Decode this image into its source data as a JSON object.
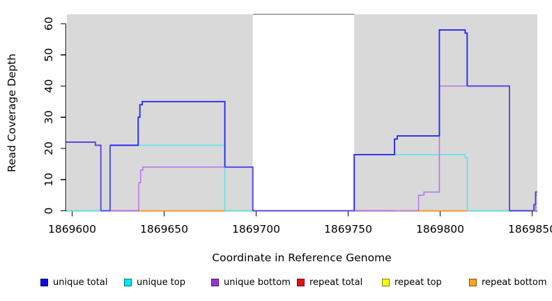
{
  "chart_data": {
    "type": "line",
    "subtype": "step-coverage-plot",
    "xlabel": "Coordinate in Reference Genome",
    "ylabel": "Read Coverage Depth",
    "x_ticks": [
      {
        "value": 1869600,
        "label": "1869600"
      },
      {
        "value": 1869650,
        "label": "1869650"
      },
      {
        "value": 1869700,
        "label": "1869700"
      },
      {
        "value": 1869750,
        "label": "1869750"
      },
      {
        "value": 1869800,
        "label": "1869800"
      },
      {
        "value": 1869850,
        "label": "1869850"
      }
    ],
    "y_ticks": [
      {
        "value": 0,
        "label": "0"
      },
      {
        "value": 10,
        "label": "10"
      },
      {
        "value": 20,
        "label": "20"
      },
      {
        "value": 30,
        "label": "30"
      },
      {
        "value": 40,
        "label": "40"
      },
      {
        "value": 50,
        "label": "50"
      },
      {
        "value": 60,
        "label": "60"
      }
    ],
    "x_range": [
      1869596.8,
      1869852.8
    ],
    "y_range": [
      0,
      63
    ],
    "shaded_regions": {
      "color": "#d9d9d9",
      "top_value": 63,
      "regions": [
        {
          "x1": 1869597.2,
          "x2": 1869698.2
        },
        {
          "x1": 1869753.3,
          "x2": 1869852.8
        }
      ]
    },
    "gap_top_line": {
      "x1": 1869698.2,
      "x2": 1869753.3,
      "y": 63,
      "color": "#8c8c8c"
    },
    "series": [
      {
        "name": "unique total",
        "base_color": "#2a2af2",
        "segments": [
          {
            "color": "#5847e0",
            "points": [
              [
                1869596.8,
                22
              ],
              [
                1869612.6,
                22
              ],
              [
                1869612.6,
                21
              ],
              [
                1869615.6,
                21
              ],
              [
                1869615.6,
                0
              ]
            ]
          },
          {
            "color": "#4a4cea",
            "points": [
              [
                1869615.6,
                0
              ],
              [
                1869620.6,
                0
              ],
              [
                1869620.6,
                21
              ]
            ]
          },
          {
            "color": "#2a2af2",
            "points": [
              [
                1869620.6,
                21
              ],
              [
                1869635.9,
                21
              ],
              [
                1869635.9,
                30
              ],
              [
                1869636.8,
                30
              ],
              [
                1869636.8,
                34
              ],
              [
                1869638.1,
                34
              ],
              [
                1869638.1,
                35
              ],
              [
                1869683,
                35
              ],
              [
                1869683,
                14
              ]
            ]
          },
          {
            "color": "#4d3fe6",
            "points": [
              [
                1869683,
                14
              ],
              [
                1869698.2,
                14
              ],
              [
                1869698.2,
                0
              ]
            ]
          },
          {
            "color": "#5847e0",
            "points": [
              [
                1869698.2,
                0
              ],
              [
                1869753.3,
                0
              ]
            ]
          },
          {
            "color": "#2a2af2",
            "points": [
              [
                1869753.3,
                0
              ],
              [
                1869753.3,
                18
              ],
              [
                1869775.2,
                18
              ],
              [
                1869775.2,
                23
              ],
              [
                1869776.7,
                23
              ],
              [
                1869776.7,
                24
              ],
              [
                1869799.6,
                24
              ],
              [
                1869799.6,
                58
              ],
              [
                1869813.6,
                58
              ],
              [
                1869813.6,
                57
              ],
              [
                1869814.7,
                57
              ],
              [
                1869814.7,
                40
              ]
            ]
          },
          {
            "color": "#5847e0",
            "points": [
              [
                1869814.7,
                40
              ],
              [
                1869837.7,
                40
              ],
              [
                1869837.7,
                0
              ]
            ]
          },
          {
            "color": "#4540d8",
            "points": [
              [
                1869837.7,
                0
              ],
              [
                1869851,
                0
              ]
            ]
          },
          {
            "color": "#4d3fe6",
            "points": [
              [
                1869851,
                0
              ],
              [
                1869851,
                2
              ],
              [
                1869851.9,
                2
              ],
              [
                1869851.9,
                6
              ],
              [
                1869852.8,
                6
              ]
            ]
          }
        ]
      },
      {
        "name": "unique top",
        "base_color": "#55e4ee",
        "segments": [
          {
            "color": "#55e4ee",
            "points": [
              [
                1869596.8,
                0
              ],
              [
                1869620.6,
                0
              ],
              [
                1869620.6,
                21
              ],
              [
                1869683,
                21
              ],
              [
                1869683,
                0
              ],
              [
                1869753.3,
                0
              ],
              [
                1869753.3,
                18
              ],
              [
                1869813.6,
                18
              ],
              [
                1869813.6,
                17
              ],
              [
                1869814.8,
                17
              ],
              [
                1869814.8,
                0
              ],
              [
                1869851,
                0
              ],
              [
                1869851,
                1
              ],
              [
                1869852.8,
                1
              ]
            ]
          }
        ]
      },
      {
        "name": "unique bottom",
        "base_color": "#b472e9",
        "segments": [
          {
            "color": "#b472e9",
            "points": [
              [
                1869596.8,
                22
              ],
              [
                1869612.6,
                22
              ],
              [
                1869612.6,
                21
              ],
              [
                1869615.6,
                21
              ],
              [
                1869615.6,
                0
              ],
              [
                1869636.2,
                0
              ],
              [
                1869636.2,
                9
              ],
              [
                1869637.2,
                9
              ],
              [
                1869637.2,
                13
              ],
              [
                1869638.4,
                13
              ],
              [
                1869638.4,
                14
              ],
              [
                1869698.2,
                14
              ],
              [
                1869698.2,
                0
              ],
              [
                1869788.3,
                0
              ],
              [
                1869788.3,
                5
              ],
              [
                1869791.2,
                5
              ],
              [
                1869791.2,
                6
              ],
              [
                1869799.6,
                6
              ],
              [
                1869799.6,
                40
              ],
              [
                1869837.7,
                40
              ],
              [
                1869837.7,
                0
              ],
              [
                1869851.9,
                0
              ],
              [
                1869851.9,
                5
              ],
              [
                1869852.8,
                5
              ]
            ]
          }
        ]
      }
    ],
    "baseline_segments": [
      {
        "x1": 1869596.8,
        "x2": 1869615.6,
        "color": "#90ce90"
      },
      {
        "x1": 1869620.6,
        "x2": 1869636.2,
        "color": "#c84b72"
      },
      {
        "x1": 1869636.2,
        "x2": 1869683.0,
        "color": "#ff9c1e"
      },
      {
        "x1": 1869683.0,
        "x2": 1869698.2,
        "color": "#90ce90"
      },
      {
        "x1": 1869753.3,
        "x2": 1869775.5,
        "color": "#c84b72"
      },
      {
        "x1": 1869775.5,
        "x2": 1869814.8,
        "color": "#ff9c1e"
      },
      {
        "x1": 1869814.8,
        "x2": 1869837.7,
        "color": "#90ce90"
      }
    ],
    "axis_color": "#000000",
    "legend_position": "bottom-horizontal"
  },
  "legend": {
    "items": [
      {
        "label": "unique total",
        "color": "#0a0ae1"
      },
      {
        "label": "unique top",
        "color": "#00e9f2"
      },
      {
        "label": "unique bottom",
        "color": "#9933d4"
      },
      {
        "label": "repeat total",
        "color": "#e01414"
      },
      {
        "label": "repeat top",
        "color": "#fcfc0a"
      },
      {
        "label": "repeat bottom",
        "color": "#ffa41b"
      }
    ]
  }
}
